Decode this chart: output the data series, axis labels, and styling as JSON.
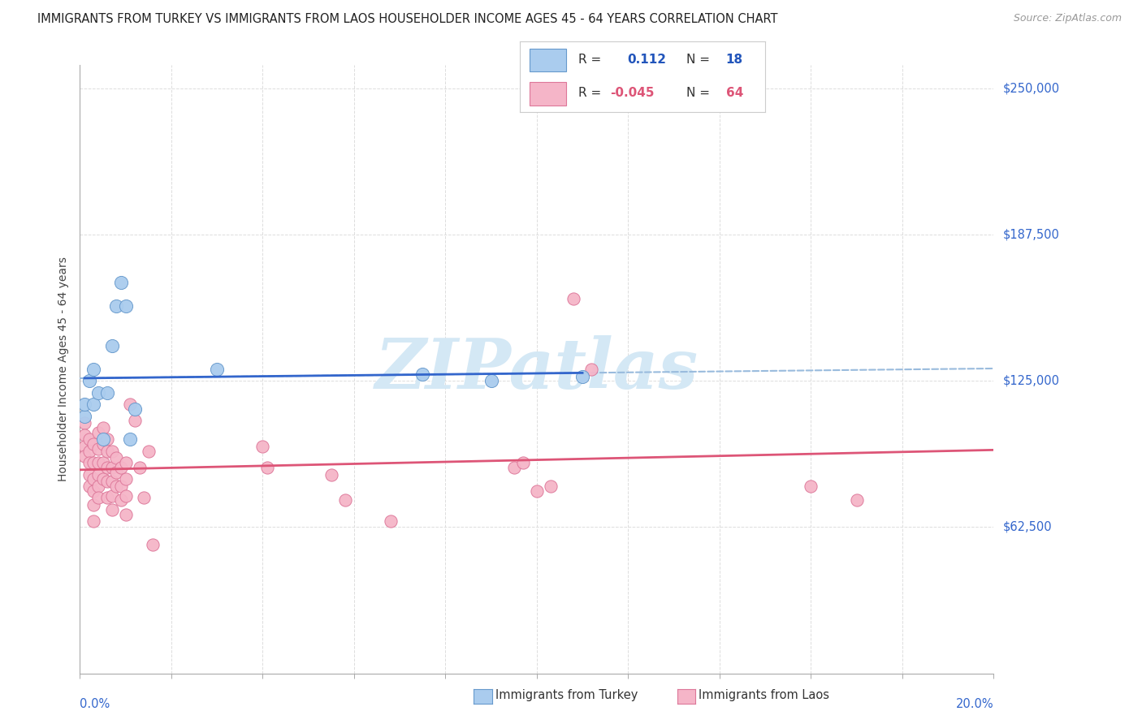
{
  "title": "IMMIGRANTS FROM TURKEY VS IMMIGRANTS FROM LAOS HOUSEHOLDER INCOME AGES 45 - 64 YEARS CORRELATION CHART",
  "source": "Source: ZipAtlas.com",
  "ylabel": "Householder Income Ages 45 - 64 years",
  "xmin": 0.0,
  "xmax": 0.2,
  "ymin": 0,
  "ymax": 260000,
  "ytick_vals": [
    62500,
    125000,
    187500,
    250000
  ],
  "ytick_labels": [
    "$62,500",
    "$125,000",
    "$187,500",
    "$250,000"
  ],
  "xtick_vals": [
    0.0,
    0.02,
    0.04,
    0.06,
    0.08,
    0.1,
    0.12,
    0.14,
    0.16,
    0.18,
    0.2
  ],
  "turkey_color": "#aaccee",
  "turkey_edge_color": "#6699cc",
  "laos_color": "#f5b5c8",
  "laos_edge_color": "#dd7799",
  "turkey_line_color": "#3366cc",
  "laos_line_color": "#dd5577",
  "dashed_color": "#99bbdd",
  "grid_color": "#dddddd",
  "watermark_color": "#d4e8f5",
  "turkey_R": 0.112,
  "turkey_N": 18,
  "laos_R": -0.045,
  "laos_N": 64,
  "turkey_x": [
    0.001,
    0.001,
    0.002,
    0.003,
    0.003,
    0.004,
    0.005,
    0.006,
    0.007,
    0.008,
    0.009,
    0.01,
    0.011,
    0.012,
    0.03,
    0.075,
    0.09,
    0.11
  ],
  "turkey_y": [
    110000,
    115000,
    125000,
    130000,
    115000,
    120000,
    100000,
    120000,
    140000,
    157000,
    167000,
    157000,
    100000,
    113000,
    130000,
    128000,
    125000,
    127000
  ],
  "laos_x": [
    0.001,
    0.001,
    0.001,
    0.001,
    0.002,
    0.002,
    0.002,
    0.002,
    0.002,
    0.003,
    0.003,
    0.003,
    0.003,
    0.003,
    0.003,
    0.004,
    0.004,
    0.004,
    0.004,
    0.004,
    0.004,
    0.005,
    0.005,
    0.005,
    0.005,
    0.006,
    0.006,
    0.006,
    0.006,
    0.006,
    0.007,
    0.007,
    0.007,
    0.007,
    0.007,
    0.008,
    0.008,
    0.008,
    0.009,
    0.009,
    0.009,
    0.01,
    0.01,
    0.01,
    0.01,
    0.011,
    0.012,
    0.013,
    0.014,
    0.015,
    0.016,
    0.04,
    0.041,
    0.055,
    0.058,
    0.068,
    0.095,
    0.097,
    0.1,
    0.103,
    0.108,
    0.112,
    0.16,
    0.17
  ],
  "laos_y": [
    107000,
    102000,
    97000,
    93000,
    100000,
    95000,
    90000,
    85000,
    80000,
    98000,
    90000,
    83000,
    78000,
    72000,
    65000,
    103000,
    96000,
    90000,
    85000,
    80000,
    75000,
    105000,
    98000,
    90000,
    83000,
    100000,
    95000,
    88000,
    82000,
    75000,
    95000,
    88000,
    82000,
    76000,
    70000,
    92000,
    86000,
    80000,
    88000,
    80000,
    74000,
    90000,
    83000,
    76000,
    68000,
    115000,
    108000,
    88000,
    75000,
    95000,
    55000,
    97000,
    88000,
    85000,
    74000,
    65000,
    88000,
    90000,
    78000,
    80000,
    160000,
    130000,
    80000,
    74000
  ],
  "legend_turkey_label": "R =",
  "legend_turkey_r": "0.112",
  "legend_turkey_n_label": "N =",
  "legend_turkey_n": "18",
  "legend_laos_label": "R =",
  "legend_laos_r": "-0.045",
  "legend_laos_n_label": "N =",
  "legend_laos_n": "64",
  "bottom_legend_turkey": "Immigrants from Turkey",
  "bottom_legend_laos": "Immigrants from Laos"
}
